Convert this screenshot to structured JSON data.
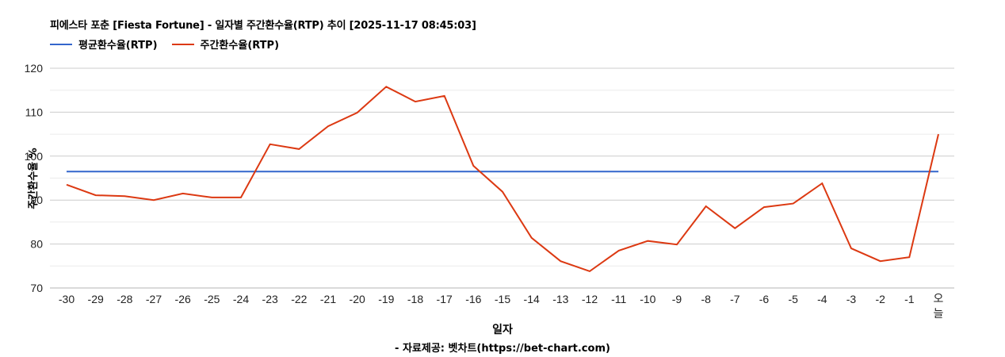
{
  "header": {
    "title": "피에스타 포춘 [Fiesta Fortune] - 일자별 주간환수율(RTP) 추이 [2025-11-17 08:45:03]"
  },
  "legend": [
    {
      "label": "평균환수율(RTP)",
      "color": "#3366cc"
    },
    {
      "label": "주간환수율(RTP)",
      "color": "#dc3912"
    }
  ],
  "footer": {
    "xlabel": "일자",
    "source": "- 자료제공: 벳차트(https://bet-chart.com)"
  },
  "chart_data": {
    "type": "line",
    "title": "피에스타 포춘 [Fiesta Fortune] - 일자별 주간환수율(RTP) 추이 [2025-11-17 08:45:03]",
    "xlabel": "일자",
    "ylabel": "주간환수율 %",
    "ylim": [
      70,
      120
    ],
    "yticks": [
      70,
      80,
      90,
      100,
      110,
      120
    ],
    "grid": true,
    "legend_position": "top",
    "categories": [
      "-30",
      "-29",
      "-28",
      "-27",
      "-26",
      "-25",
      "-24",
      "-23",
      "-22",
      "-21",
      "-20",
      "-19",
      "-18",
      "-17",
      "-16",
      "-15",
      "-14",
      "-13",
      "-12",
      "-11",
      "-10",
      "-9",
      "-8",
      "-7",
      "-6",
      "-5",
      "-4",
      "-3",
      "-2",
      "-1",
      "오늘"
    ],
    "series": [
      {
        "name": "평균환수율(RTP)",
        "color": "#3366cc",
        "values": [
          96.5,
          96.5,
          96.5,
          96.5,
          96.5,
          96.5,
          96.5,
          96.5,
          96.5,
          96.5,
          96.5,
          96.5,
          96.5,
          96.5,
          96.5,
          96.5,
          96.5,
          96.5,
          96.5,
          96.5,
          96.5,
          96.5,
          96.5,
          96.5,
          96.5,
          96.5,
          96.5,
          96.5,
          96.5,
          96.5,
          96.5
        ]
      },
      {
        "name": "주간환수율(RTP)",
        "color": "#dc3912",
        "values": [
          93.5,
          91.1,
          90.9,
          90.0,
          91.5,
          90.6,
          90.6,
          102.7,
          101.6,
          106.8,
          109.9,
          115.8,
          112.4,
          113.7,
          97.8,
          91.9,
          81.4,
          76.1,
          73.8,
          78.5,
          80.7,
          79.9,
          88.6,
          83.6,
          88.4,
          89.2,
          93.8,
          79.0,
          76.1,
          77.0,
          105.0
        ]
      }
    ],
    "footnote": "- 자료제공: 벳차트(https://bet-chart.com)"
  }
}
